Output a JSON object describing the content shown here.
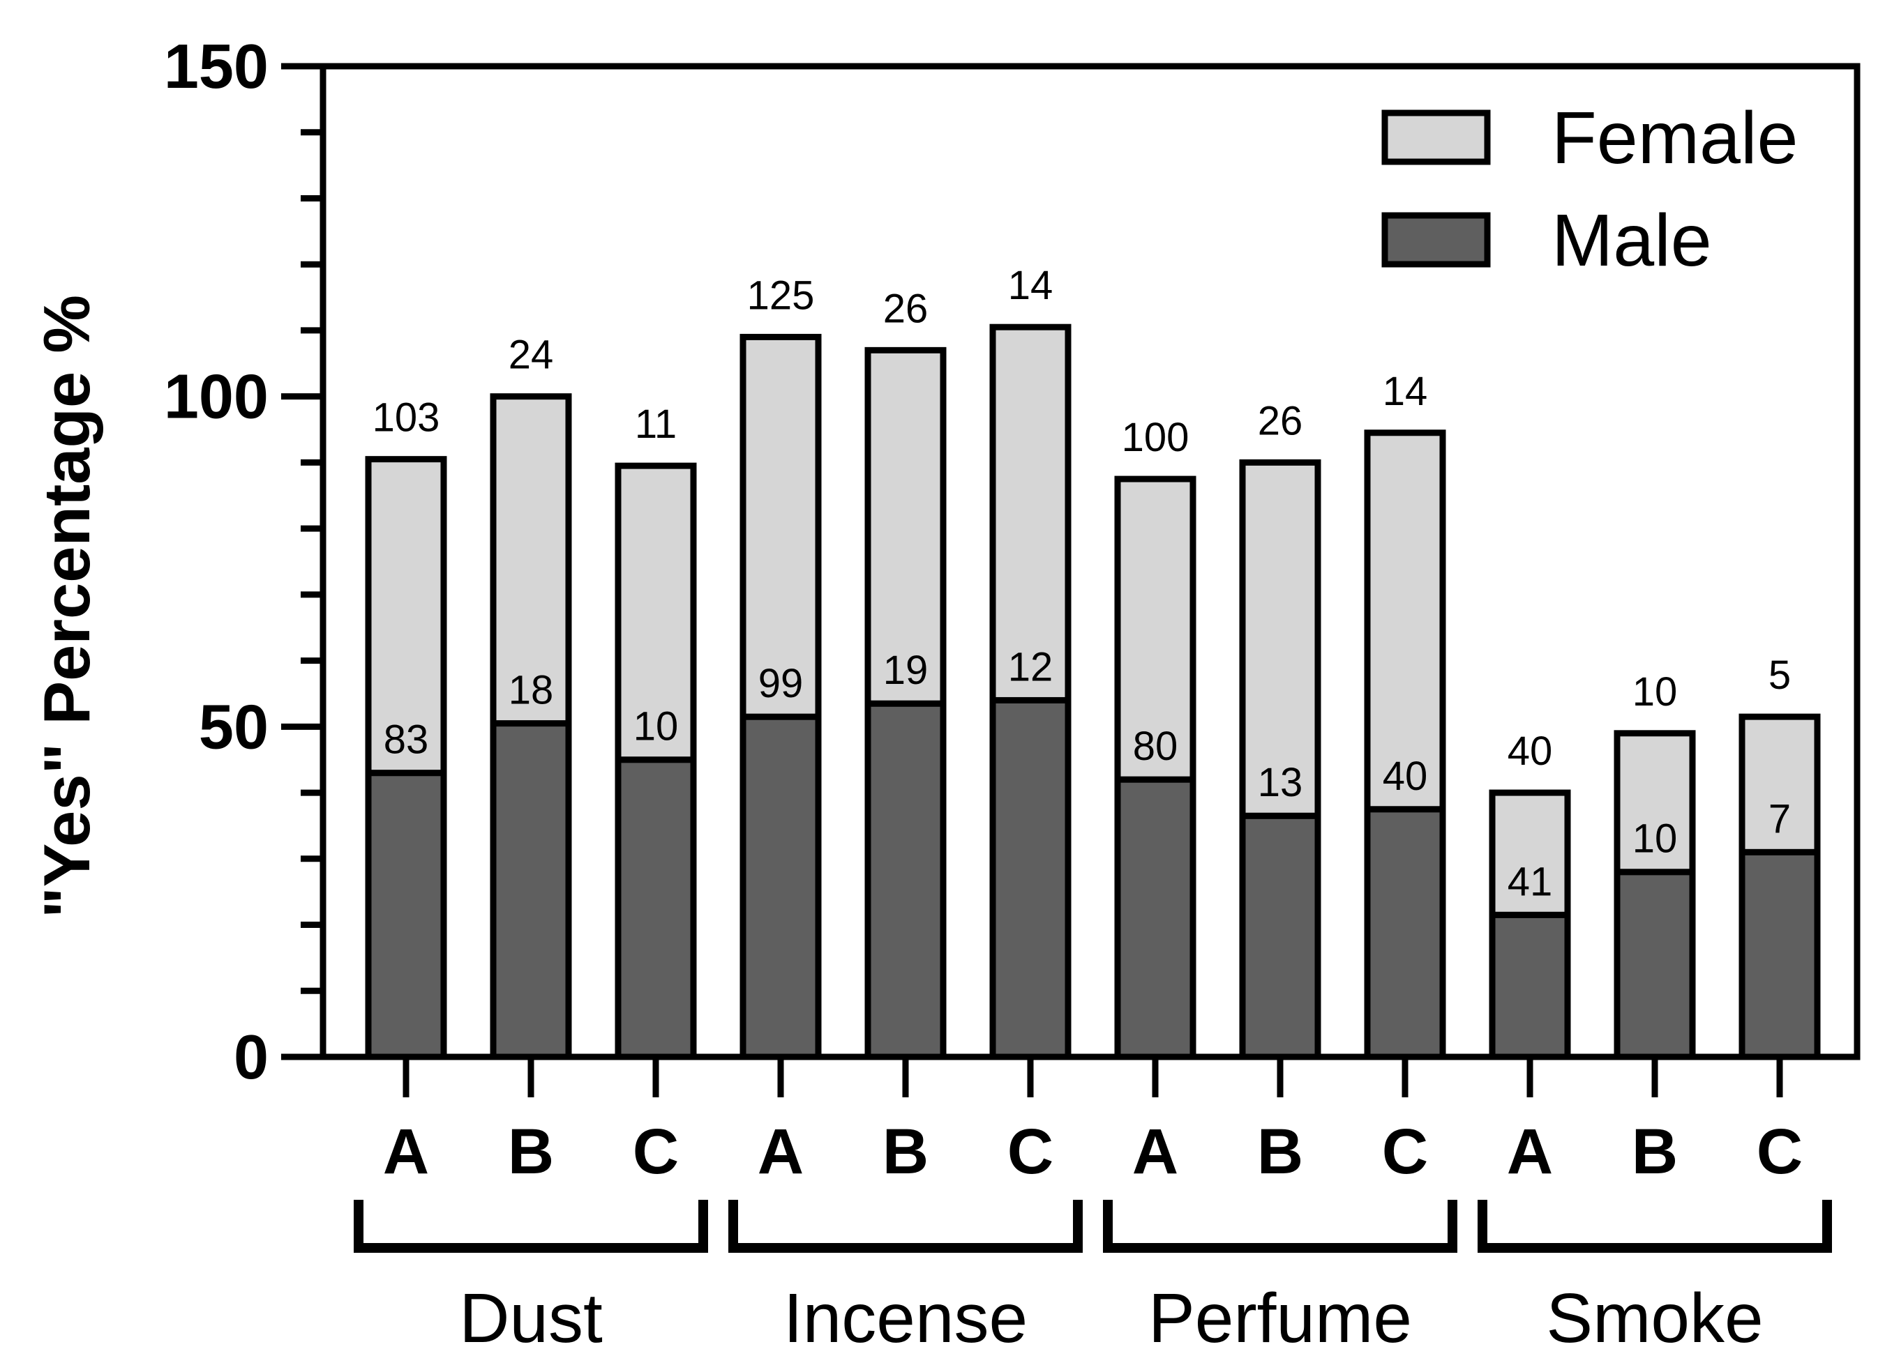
{
  "chart_data": {
    "type": "bar",
    "stacked": true,
    "ylabel": "\"Yes\" Percentage %",
    "xlabel": "",
    "ylim": [
      0,
      150
    ],
    "yticks": [
      0,
      50,
      100,
      150
    ],
    "y_minor_step": 10,
    "groups": [
      {
        "name": "Dust",
        "categories": [
          "A",
          "B",
          "C"
        ]
      },
      {
        "name": "Incense",
        "categories": [
          "A",
          "B",
          "C"
        ]
      },
      {
        "name": "Perfume",
        "categories": [
          "A",
          "B",
          "C"
        ]
      },
      {
        "name": "Smoke",
        "categories": [
          "A",
          "B",
          "C"
        ]
      }
    ],
    "series": [
      {
        "name": "Male",
        "color": "#5f5f5f",
        "values": [
          43,
          50.5,
          45,
          51.5,
          53.5,
          54,
          42,
          36.5,
          37.5,
          21.5,
          28,
          31
        ],
        "counts": [
          "83",
          "18",
          "10",
          "99",
          "19",
          "12",
          "80",
          "13",
          "40",
          "41",
          "10",
          "7"
        ]
      },
      {
        "name": "Female",
        "color": "#d6d6d6",
        "values": [
          47.5,
          49.5,
          44.5,
          57.5,
          53.5,
          56.5,
          45.5,
          53.5,
          57,
          18.5,
          21,
          20.5
        ],
        "counts": [
          "103",
          "24",
          "11",
          "125",
          "26",
          "14",
          "100",
          "26",
          "14",
          "40",
          "10",
          "5"
        ]
      }
    ],
    "legend": {
      "position": "top-right",
      "entries": [
        "Female",
        "Male"
      ]
    },
    "grid": false
  }
}
